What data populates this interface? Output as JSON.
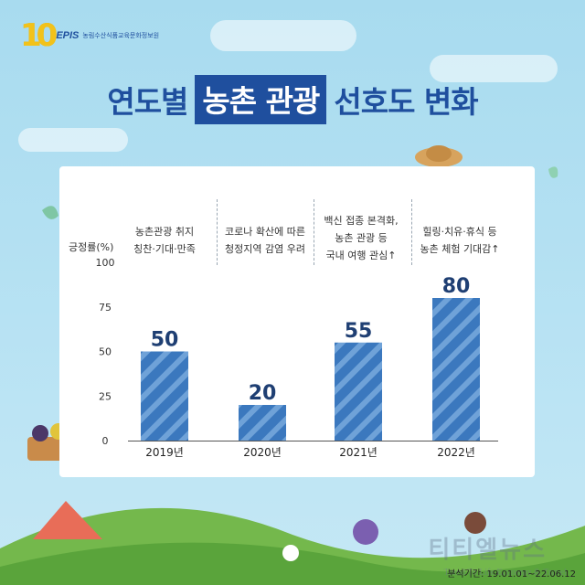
{
  "logo": {
    "mark": "10",
    "epis": "EPIS",
    "org": "농림수산식품교육문화정보원"
  },
  "title": {
    "before": "연도별",
    "highlight": "농촌 관광",
    "after": "선호도 변화"
  },
  "descriptions": [
    "농촌관광 취지\n칭찬·기대·만족",
    "코로나 확산에 따른\n청정지역 감염 우려",
    "백신 접종 본격화,\n농촌 관광 등\n국내 여행 관심↑",
    "힐링·치유·휴식 등\n농촌 체험 기대감↑"
  ],
  "source": "분석기간: 19.01.01~22.06.12",
  "colors": {
    "brand": "#1f4f9e",
    "bar": "#3b78be",
    "bar_stripe": "#6fa2d8",
    "background": "#b4e0f2"
  },
  "chart_data": {
    "type": "bar",
    "ylabel": "긍정률(%)",
    "categories": [
      "2019년",
      "2020년",
      "2021년",
      "2022년"
    ],
    "values": [
      50,
      20,
      55,
      80
    ],
    "ylim": [
      0,
      100
    ],
    "yticks": [
      0,
      25,
      50,
      75,
      100
    ],
    "grid": false,
    "data_labels": true
  }
}
